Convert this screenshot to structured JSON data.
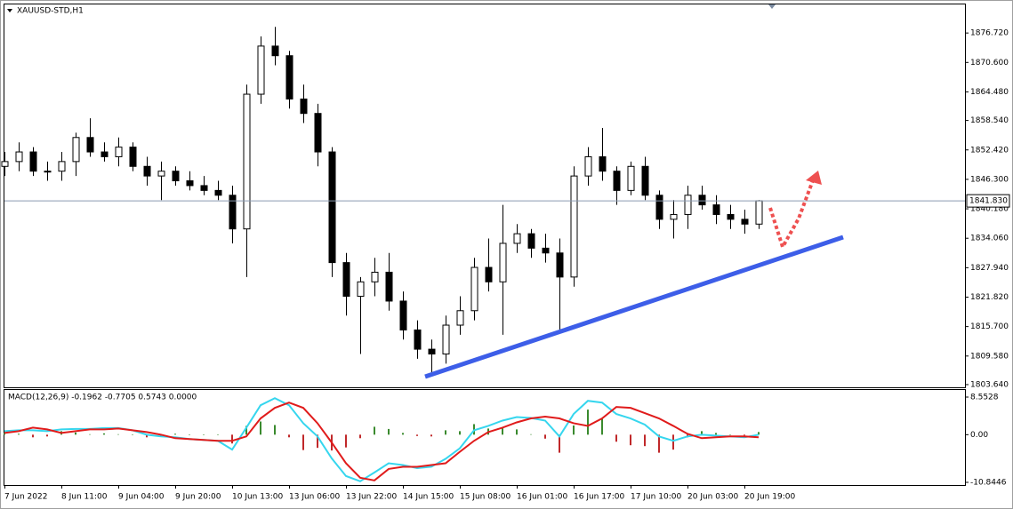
{
  "chart_data": [
    {
      "type": "candlestick",
      "title": "XAUUSD-STD,H1",
      "categories": [
        "7 Jun 2022",
        null,
        null,
        null,
        "8 Jun 11:00",
        null,
        null,
        null,
        "9 Jun 04:00",
        null,
        null,
        null,
        "9 Jun 20:00",
        null,
        null,
        null,
        "10 Jun 13:00",
        null,
        null,
        null,
        "13 Jun 06:00",
        null,
        null,
        null,
        "13 Jun 22:00",
        null,
        null,
        null,
        "14 Jun 15:00",
        null,
        null,
        null,
        "15 Jun 08:00",
        null,
        null,
        null,
        "16 Jun 01:00",
        null,
        null,
        null,
        "16 Jun 17:00",
        null,
        null,
        null,
        "17 Jun 10:00",
        null,
        null,
        null,
        "20 Jun 03:00",
        null,
        null,
        null,
        "20 Jun 19:00",
        null
      ],
      "open": [
        1849,
        1850,
        1852,
        1848,
        1848,
        1850,
        1855,
        1852,
        1851,
        1853,
        1849,
        1847,
        1848,
        1846,
        1845,
        1844,
        1843,
        1836,
        1864,
        1874,
        1872,
        1863,
        1860,
        1852,
        1829,
        1822,
        1825,
        1827,
        1821,
        1815,
        1811,
        1810,
        1816,
        1819,
        1828,
        1825,
        1833,
        1835,
        1832,
        1831,
        1826,
        1847,
        1851,
        1848,
        1844,
        1849,
        1843,
        1838,
        1839,
        1843,
        1841,
        1839,
        1838,
        1837
      ],
      "high": [
        1852,
        1854,
        1853,
        1850,
        1852,
        1856,
        1859,
        1854,
        1855,
        1854,
        1851,
        1850,
        1849,
        1848,
        1847,
        1846,
        1845,
        1866,
        1876,
        1878,
        1873,
        1866,
        1862,
        1853,
        1831,
        1826,
        1830,
        1831,
        1823,
        1817,
        1813,
        1818,
        1822,
        1830,
        1834,
        1841,
        1837,
        1836,
        1835,
        1834,
        1849,
        1853,
        1857,
        1849,
        1850,
        1851,
        1844,
        1842,
        1845,
        1845,
        1843,
        1841,
        1840,
        1842
      ],
      "low": [
        1847,
        1848,
        1847,
        1846,
        1846,
        1847,
        1851,
        1850,
        1849,
        1848,
        1845,
        1842,
        1845,
        1844,
        1843,
        1842,
        1833,
        1826,
        1862,
        1870,
        1861,
        1858,
        1849,
        1826,
        1818,
        1810,
        1822,
        1819,
        1813,
        1809,
        1806,
        1808,
        1814,
        1817,
        1823,
        1814,
        1831,
        1830,
        1829,
        1815,
        1824,
        1845,
        1846,
        1841,
        1843,
        1842,
        1836,
        1834,
        1836,
        1840,
        1837,
        1836,
        1835,
        1836
      ],
      "close": [
        1850,
        1852,
        1848,
        1848,
        1850,
        1855,
        1852,
        1851,
        1853,
        1849,
        1847,
        1848,
        1846,
        1845,
        1844,
        1843,
        1836,
        1864,
        1874,
        1872,
        1863,
        1860,
        1852,
        1829,
        1822,
        1825,
        1827,
        1821,
        1815,
        1811,
        1810,
        1816,
        1819,
        1828,
        1825,
        1833,
        1835,
        1832,
        1831,
        1826,
        1847,
        1851,
        1848,
        1844,
        1849,
        1843,
        1838,
        1839,
        1843,
        1841,
        1839,
        1838,
        1837,
        1841.83
      ],
      "up_color": "#ffffff",
      "down_color": "#000000",
      "ylim": [
        1803.08,
        1882.84
      ],
      "yticks": [
        {
          "value": 1876.72,
          "label": "1876.720"
        },
        {
          "value": 1870.6,
          "label": "1870.600"
        },
        {
          "value": 1864.48,
          "label": "1864.480"
        },
        {
          "value": 1858.54,
          "label": "1858.540"
        },
        {
          "value": 1852.42,
          "label": "1852.420"
        },
        {
          "value": 1846.3,
          "label": "1846.300"
        },
        {
          "value": 1840.18,
          "label": "1840.180"
        },
        {
          "value": 1834.06,
          "label": "1834.060"
        },
        {
          "value": 1827.94,
          "label": "1827.940"
        },
        {
          "value": 1821.82,
          "label": "1821.820"
        },
        {
          "value": 1815.7,
          "label": "1815.700"
        },
        {
          "value": 1809.58,
          "label": "1809.580"
        },
        {
          "value": 1803.64,
          "label": "1803.640"
        }
      ],
      "current_price": {
        "value": 1841.83,
        "label": "1841.830"
      },
      "grid": false
    },
    {
      "type": "macd",
      "title": "MACD(12,26,9) -0.1962 -0.7705 0.5743 0.0000",
      "series": [
        {
          "color": "#36d6ee",
          "values": [
            0.8,
            1.0,
            1.0,
            0.8,
            1.2,
            1.3,
            1.3,
            1.5,
            1.5,
            1.0,
            0.0,
            -0.4,
            -0.6,
            -1.0,
            -1.2,
            -1.4,
            -3.4,
            1.6,
            6.7,
            8.3,
            6.7,
            2.6,
            -0.4,
            -5.4,
            -9.4,
            -10.6,
            -8.6,
            -6.5,
            -6.9,
            -7.6,
            -7.3,
            -5.5,
            -3.1,
            1.0,
            2.0,
            3.2,
            4.0,
            3.8,
            3.2,
            -0.4,
            4.7,
            7.7,
            7.3,
            4.7,
            3.7,
            2.3,
            -0.4,
            -1.4,
            -0.4,
            0.0,
            -0.2,
            -0.4,
            -0.6,
            0.0
          ]
        },
        {
          "color": "#e01b1b",
          "values": [
            0.4,
            0.8,
            1.6,
            1.2,
            0.4,
            0.8,
            1.2,
            1.2,
            1.4,
            1.0,
            0.6,
            0.0,
            -0.8,
            -1.0,
            -1.2,
            -1.4,
            -1.4,
            -0.4,
            3.7,
            6.1,
            7.3,
            6.1,
            2.6,
            -1.8,
            -6.5,
            -9.8,
            -10.4,
            -7.8,
            -7.3,
            -7.3,
            -6.9,
            -6.5,
            -3.9,
            -1.4,
            0.6,
            1.6,
            2.8,
            3.7,
            4.1,
            3.7,
            2.6,
            2.0,
            3.7,
            6.3,
            6.1,
            4.9,
            3.7,
            2.0,
            0.2,
            -0.8,
            -0.6,
            -0.4,
            -0.4,
            -0.6
          ]
        }
      ],
      "histogram": {
        "up_color": "#3a8a2e",
        "down_color": "#c0282a",
        "values": [
          0.4,
          0.2,
          -0.6,
          -0.4,
          0.8,
          0.5,
          0.1,
          0.3,
          0.1,
          0,
          -0.6,
          -0.4,
          0.2,
          0,
          0,
          0,
          -2.0,
          2.0,
          3.0,
          2.2,
          -0.6,
          -3.5,
          -3.0,
          -3.6,
          -2.9,
          -0.8,
          1.8,
          1.3,
          0.4,
          -0.3,
          -0.4,
          1.0,
          0.8,
          2.4,
          1.4,
          1.6,
          1.2,
          0.1,
          -0.9,
          -4.1,
          2.1,
          5.7,
          3.6,
          -1.6,
          -2.4,
          -2.6,
          -4.1,
          -3.4,
          -0.6,
          0.8,
          0.4,
          0,
          -0.2,
          0.6
        ]
      },
      "ylim": [
        -11.45,
        10.17
      ],
      "yticks": [
        8.5528,
        {
          "value": 0,
          "label": "0.00"
        },
        -10.8446
      ]
    }
  ]
}
